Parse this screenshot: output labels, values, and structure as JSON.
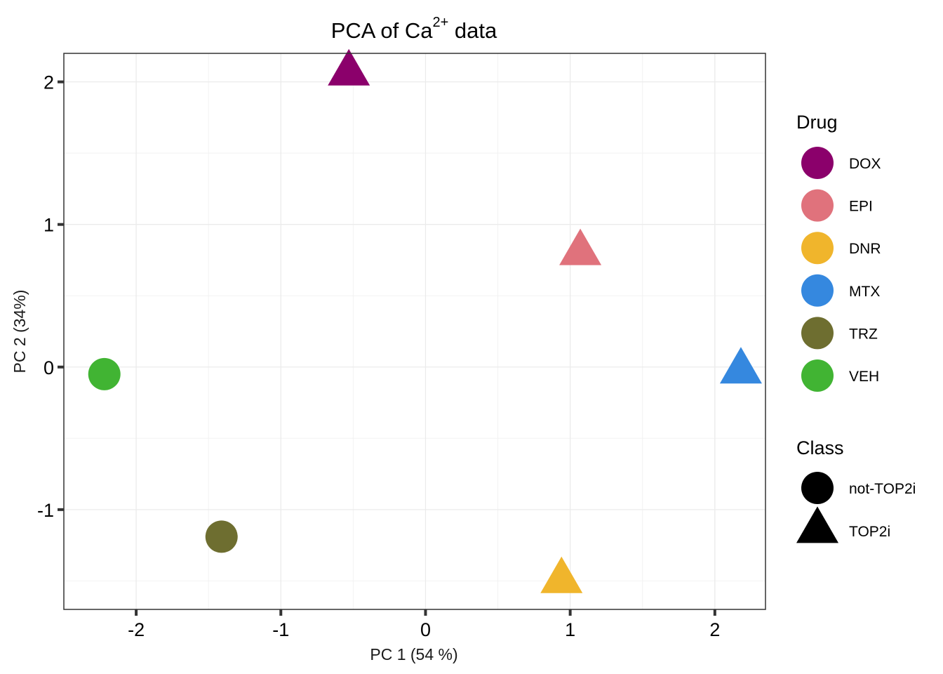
{
  "chart_data": {
    "type": "scatter",
    "title": {
      "main": "PCA of Ca",
      "sup": "2+",
      "rest": " data"
    },
    "xlabel": "PC 1 (54 %)",
    "ylabel": "PC 2 (34%)",
    "xlim": [
      -2.5,
      2.35
    ],
    "ylim": [
      -1.7,
      2.2
    ],
    "x_ticks": [
      -2,
      -1,
      0,
      1,
      2
    ],
    "x_tick_labels": [
      "-2",
      "-1",
      "0",
      "1",
      "2"
    ],
    "y_ticks": [
      -1,
      0,
      1,
      2
    ],
    "y_tick_labels": [
      "-1",
      "0",
      "1",
      "2"
    ],
    "grid": true,
    "points": [
      {
        "drug": "DOX",
        "class": "TOP2i",
        "x": -0.53,
        "y": 2.06
      },
      {
        "drug": "EPI",
        "class": "TOP2i",
        "x": 1.07,
        "y": 0.8
      },
      {
        "drug": "DNR",
        "class": "TOP2i",
        "x": 0.94,
        "y": -1.5
      },
      {
        "drug": "MTX",
        "class": "TOP2i",
        "x": 2.18,
        "y": -0.03
      },
      {
        "drug": "TRZ",
        "class": "not-TOP2i",
        "x": -1.41,
        "y": -1.19
      },
      {
        "drug": "VEH",
        "class": "not-TOP2i",
        "x": -2.22,
        "y": -0.05
      }
    ],
    "legend": {
      "placement": "right",
      "drug": {
        "title": "Drug",
        "entries": [
          {
            "label": "DOX",
            "color": "#8B006B"
          },
          {
            "label": "EPI",
            "color": "#E0727C"
          },
          {
            "label": "DNR",
            "color": "#F0B52C"
          },
          {
            "label": "MTX",
            "color": "#3588DF"
          },
          {
            "label": "TRZ",
            "color": "#6E6E30"
          },
          {
            "label": "VEH",
            "color": "#41B433"
          }
        ]
      },
      "class": {
        "title": "Class",
        "entries": [
          {
            "label": "not-TOP2i",
            "shape": "circle"
          },
          {
            "label": "TOP2i",
            "shape": "triangle"
          }
        ]
      }
    }
  }
}
